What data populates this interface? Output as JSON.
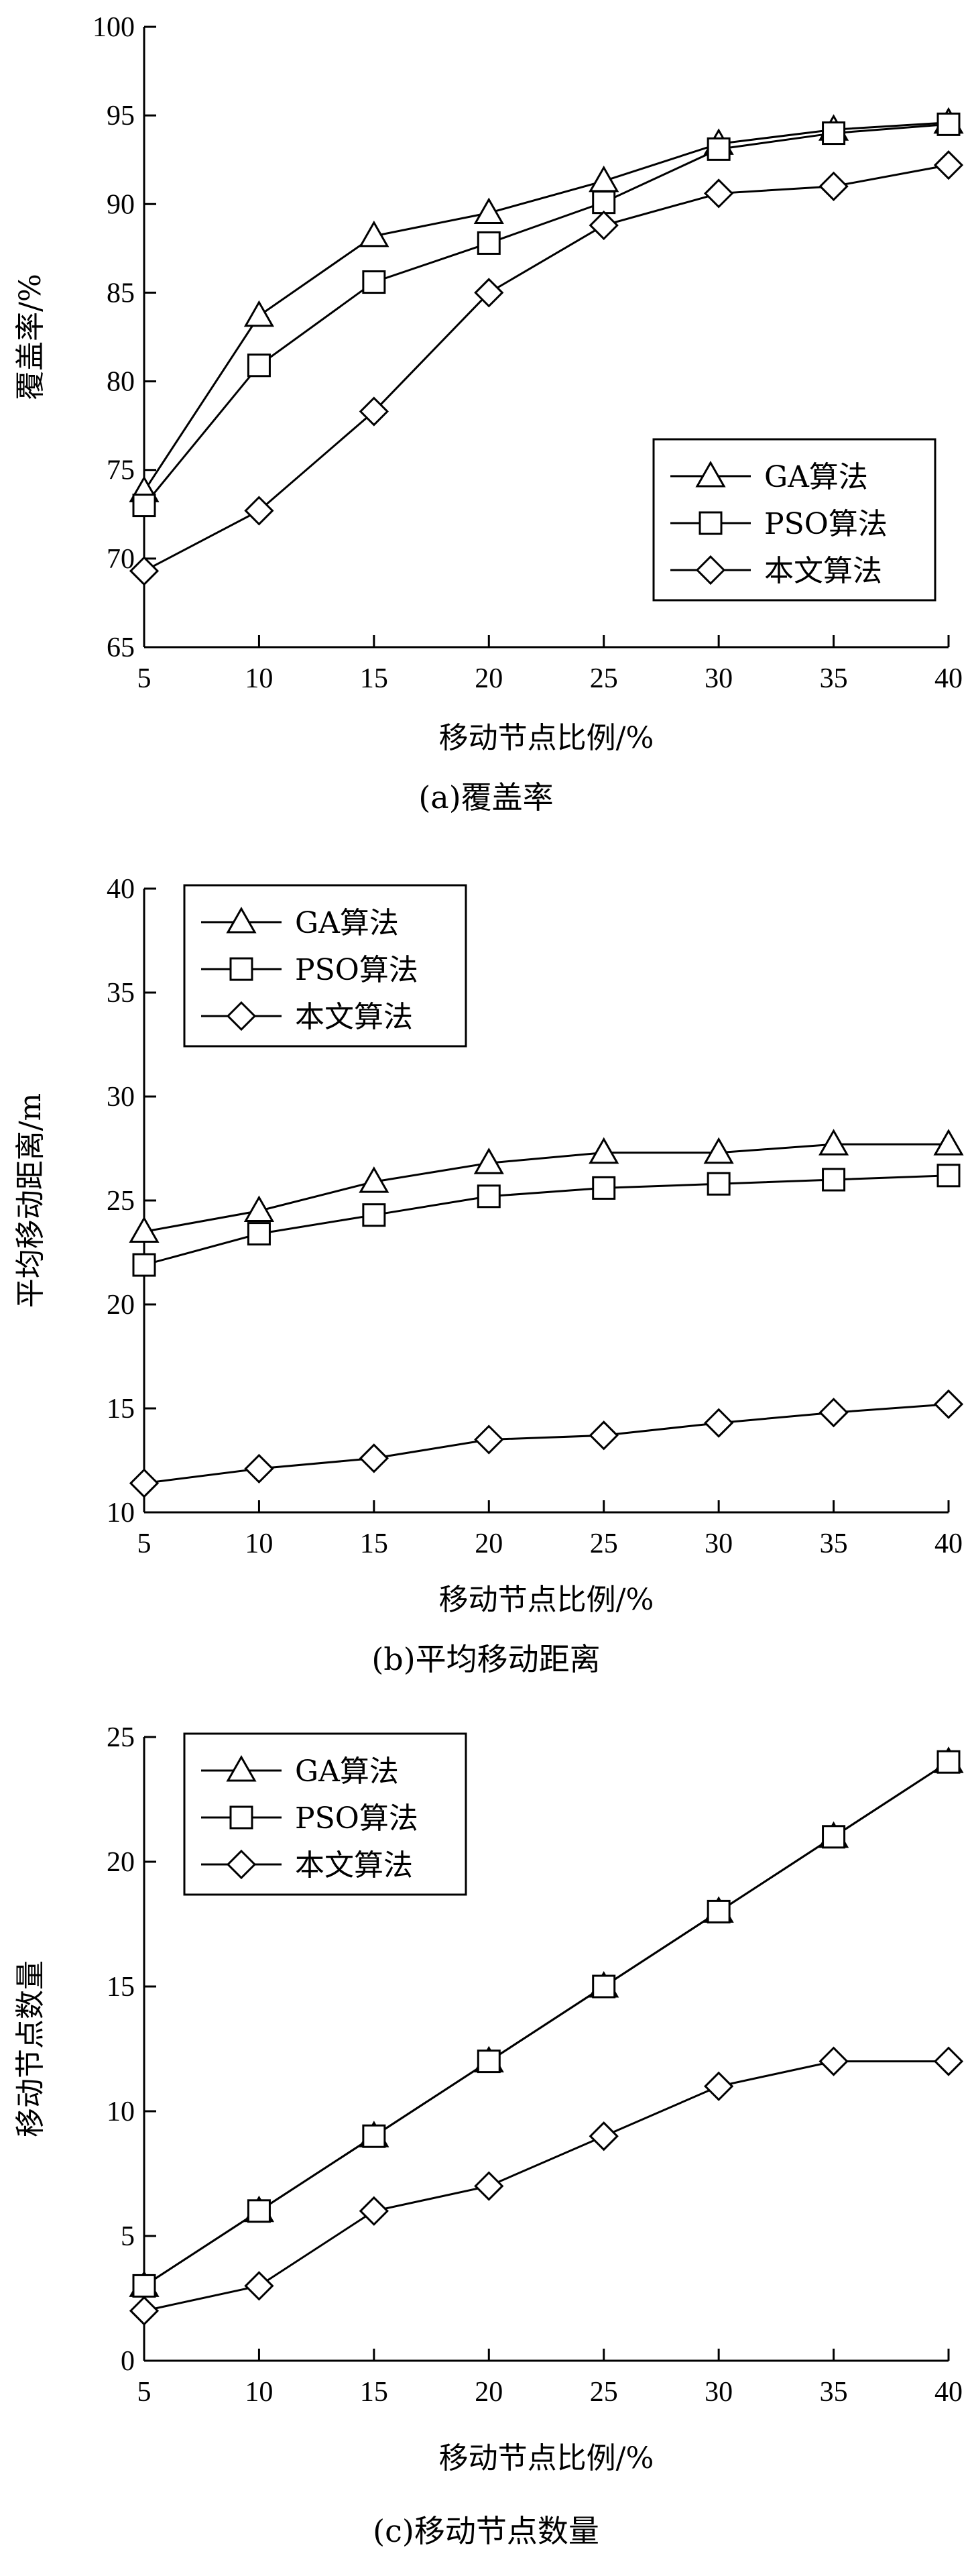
{
  "chart_data": [
    {
      "type": "line",
      "caption": "(a)覆盖率",
      "xlabel": "移动节点比例/%",
      "ylabel": "覆盖率/%",
      "x": [
        5,
        10,
        15,
        20,
        25,
        30,
        35,
        40
      ],
      "xlim": [
        5,
        40
      ],
      "ylim": [
        65,
        100
      ],
      "xticks": [
        "5",
        "10",
        "15",
        "20",
        "25",
        "30",
        "35",
        "40"
      ],
      "yticks": [
        "65",
        "70",
        "75",
        "80",
        "85",
        "90",
        "95",
        "100"
      ],
      "legend_position": "bottom-right",
      "series": [
        {
          "name": "GA算法",
          "marker": "triangle",
          "values": [
            73.8,
            83.7,
            88.2,
            89.5,
            91.3,
            93.4,
            94.2,
            94.6
          ]
        },
        {
          "name": "PSO算法",
          "marker": "square",
          "values": [
            73.0,
            80.9,
            85.6,
            87.8,
            90.1,
            93.1,
            94.0,
            94.5
          ]
        },
        {
          "name": "本文算法",
          "marker": "diamond",
          "values": [
            69.3,
            72.7,
            78.3,
            85.0,
            88.8,
            90.6,
            91.0,
            92.2
          ]
        }
      ]
    },
    {
      "type": "line",
      "caption": "(b)平均移动距离",
      "xlabel": "移动节点比例/%",
      "ylabel": "平均移动距离/m",
      "x": [
        5,
        10,
        15,
        20,
        25,
        30,
        35,
        40
      ],
      "xlim": [
        5,
        40
      ],
      "ylim": [
        10,
        40
      ],
      "xticks": [
        "5",
        "10",
        "15",
        "20",
        "25",
        "30",
        "35",
        "40"
      ],
      "yticks": [
        "10",
        "15",
        "20",
        "25",
        "30",
        "35",
        "40"
      ],
      "legend_position": "top-left",
      "series": [
        {
          "name": "GA算法",
          "marker": "triangle",
          "values": [
            23.5,
            24.5,
            25.9,
            26.8,
            27.3,
            27.3,
            27.7,
            27.7
          ]
        },
        {
          "name": "PSO算法",
          "marker": "square",
          "values": [
            21.9,
            23.4,
            24.3,
            25.2,
            25.6,
            25.8,
            26.0,
            26.2
          ]
        },
        {
          "name": "本文算法",
          "marker": "diamond",
          "values": [
            11.4,
            12.1,
            12.6,
            13.5,
            13.7,
            14.3,
            14.8,
            15.2
          ]
        }
      ]
    },
    {
      "type": "line",
      "caption": "(c)移动节点数量",
      "xlabel": "移动节点比例/%",
      "ylabel": "移动节点数量",
      "x": [
        5,
        10,
        15,
        20,
        25,
        30,
        35,
        40
      ],
      "xlim": [
        5,
        40
      ],
      "ylim": [
        0,
        25
      ],
      "xticks": [
        "5",
        "10",
        "15",
        "20",
        "25",
        "30",
        "35",
        "40"
      ],
      "yticks": [
        "0",
        "5",
        "10",
        "15",
        "20",
        "25"
      ],
      "legend_position": "top-left",
      "series": [
        {
          "name": "GA算法",
          "marker": "triangle",
          "values": [
            3,
            6,
            9,
            12,
            15,
            18,
            21,
            24
          ]
        },
        {
          "name": "PSO算法",
          "marker": "square",
          "values": [
            3,
            6,
            9,
            12,
            15,
            18,
            21,
            24
          ]
        },
        {
          "name": "本文算法",
          "marker": "diamond",
          "values": [
            2,
            3,
            6,
            7,
            9,
            11,
            12,
            12
          ]
        }
      ]
    }
  ]
}
